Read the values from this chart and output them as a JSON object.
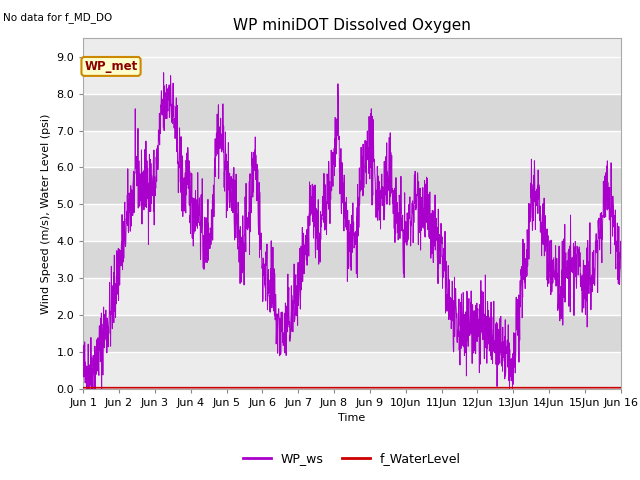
{
  "title": "WP miniDOT Dissolved Oxygen",
  "top_left_text": "No data for f_MD_DO",
  "ylabel": "Wind Speed (m/s), Water Level (psi)",
  "xlabel": "Time",
  "ylim": [
    0.0,
    9.5
  ],
  "yticks": [
    0.0,
    1.0,
    2.0,
    3.0,
    4.0,
    5.0,
    6.0,
    7.0,
    8.0,
    9.0
  ],
  "bg_color": "#e0e0e0",
  "band_light": "#ececec",
  "band_dark": "#d8d8d8",
  "wp_ws_color": "#aa00cc",
  "f_waterlevel_color": "#cc0000",
  "legend_label_ws": "WP_ws",
  "legend_label_wl": "f_WaterLevel",
  "annotation_label": "WP_met",
  "annotation_bg": "#ffffcc",
  "annotation_border": "#cc8800",
  "title_fontsize": 11,
  "label_fontsize": 8,
  "tick_fontsize": 8
}
